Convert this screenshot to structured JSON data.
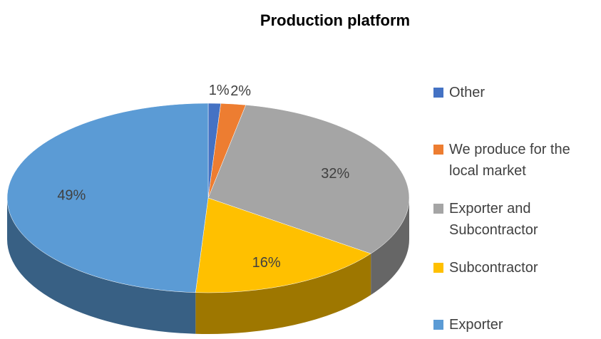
{
  "chart_data": {
    "type": "pie3d",
    "title": "Production platform",
    "series": [
      {
        "name": "Other",
        "color": "#4472c4",
        "values": [
          1
        ],
        "value_labels": [
          "1%"
        ]
      },
      {
        "name": "We produce for the local market",
        "color": "#ed7d31",
        "values": [
          2
        ],
        "value_labels": [
          "2%"
        ]
      },
      {
        "name": "Exporter and Subcontractor",
        "color": "#a5a5a5",
        "values": [
          32
        ],
        "value_labels": [
          "32%"
        ]
      },
      {
        "name": "Subcontractor",
        "color": "#ffc000",
        "values": [
          16
        ],
        "value_labels": [
          "16%"
        ]
      },
      {
        "name": "Exporter",
        "color": "#5b9bd5",
        "values": [
          49
        ],
        "value_labels": [
          "49%"
        ]
      }
    ],
    "legend": "right"
  }
}
